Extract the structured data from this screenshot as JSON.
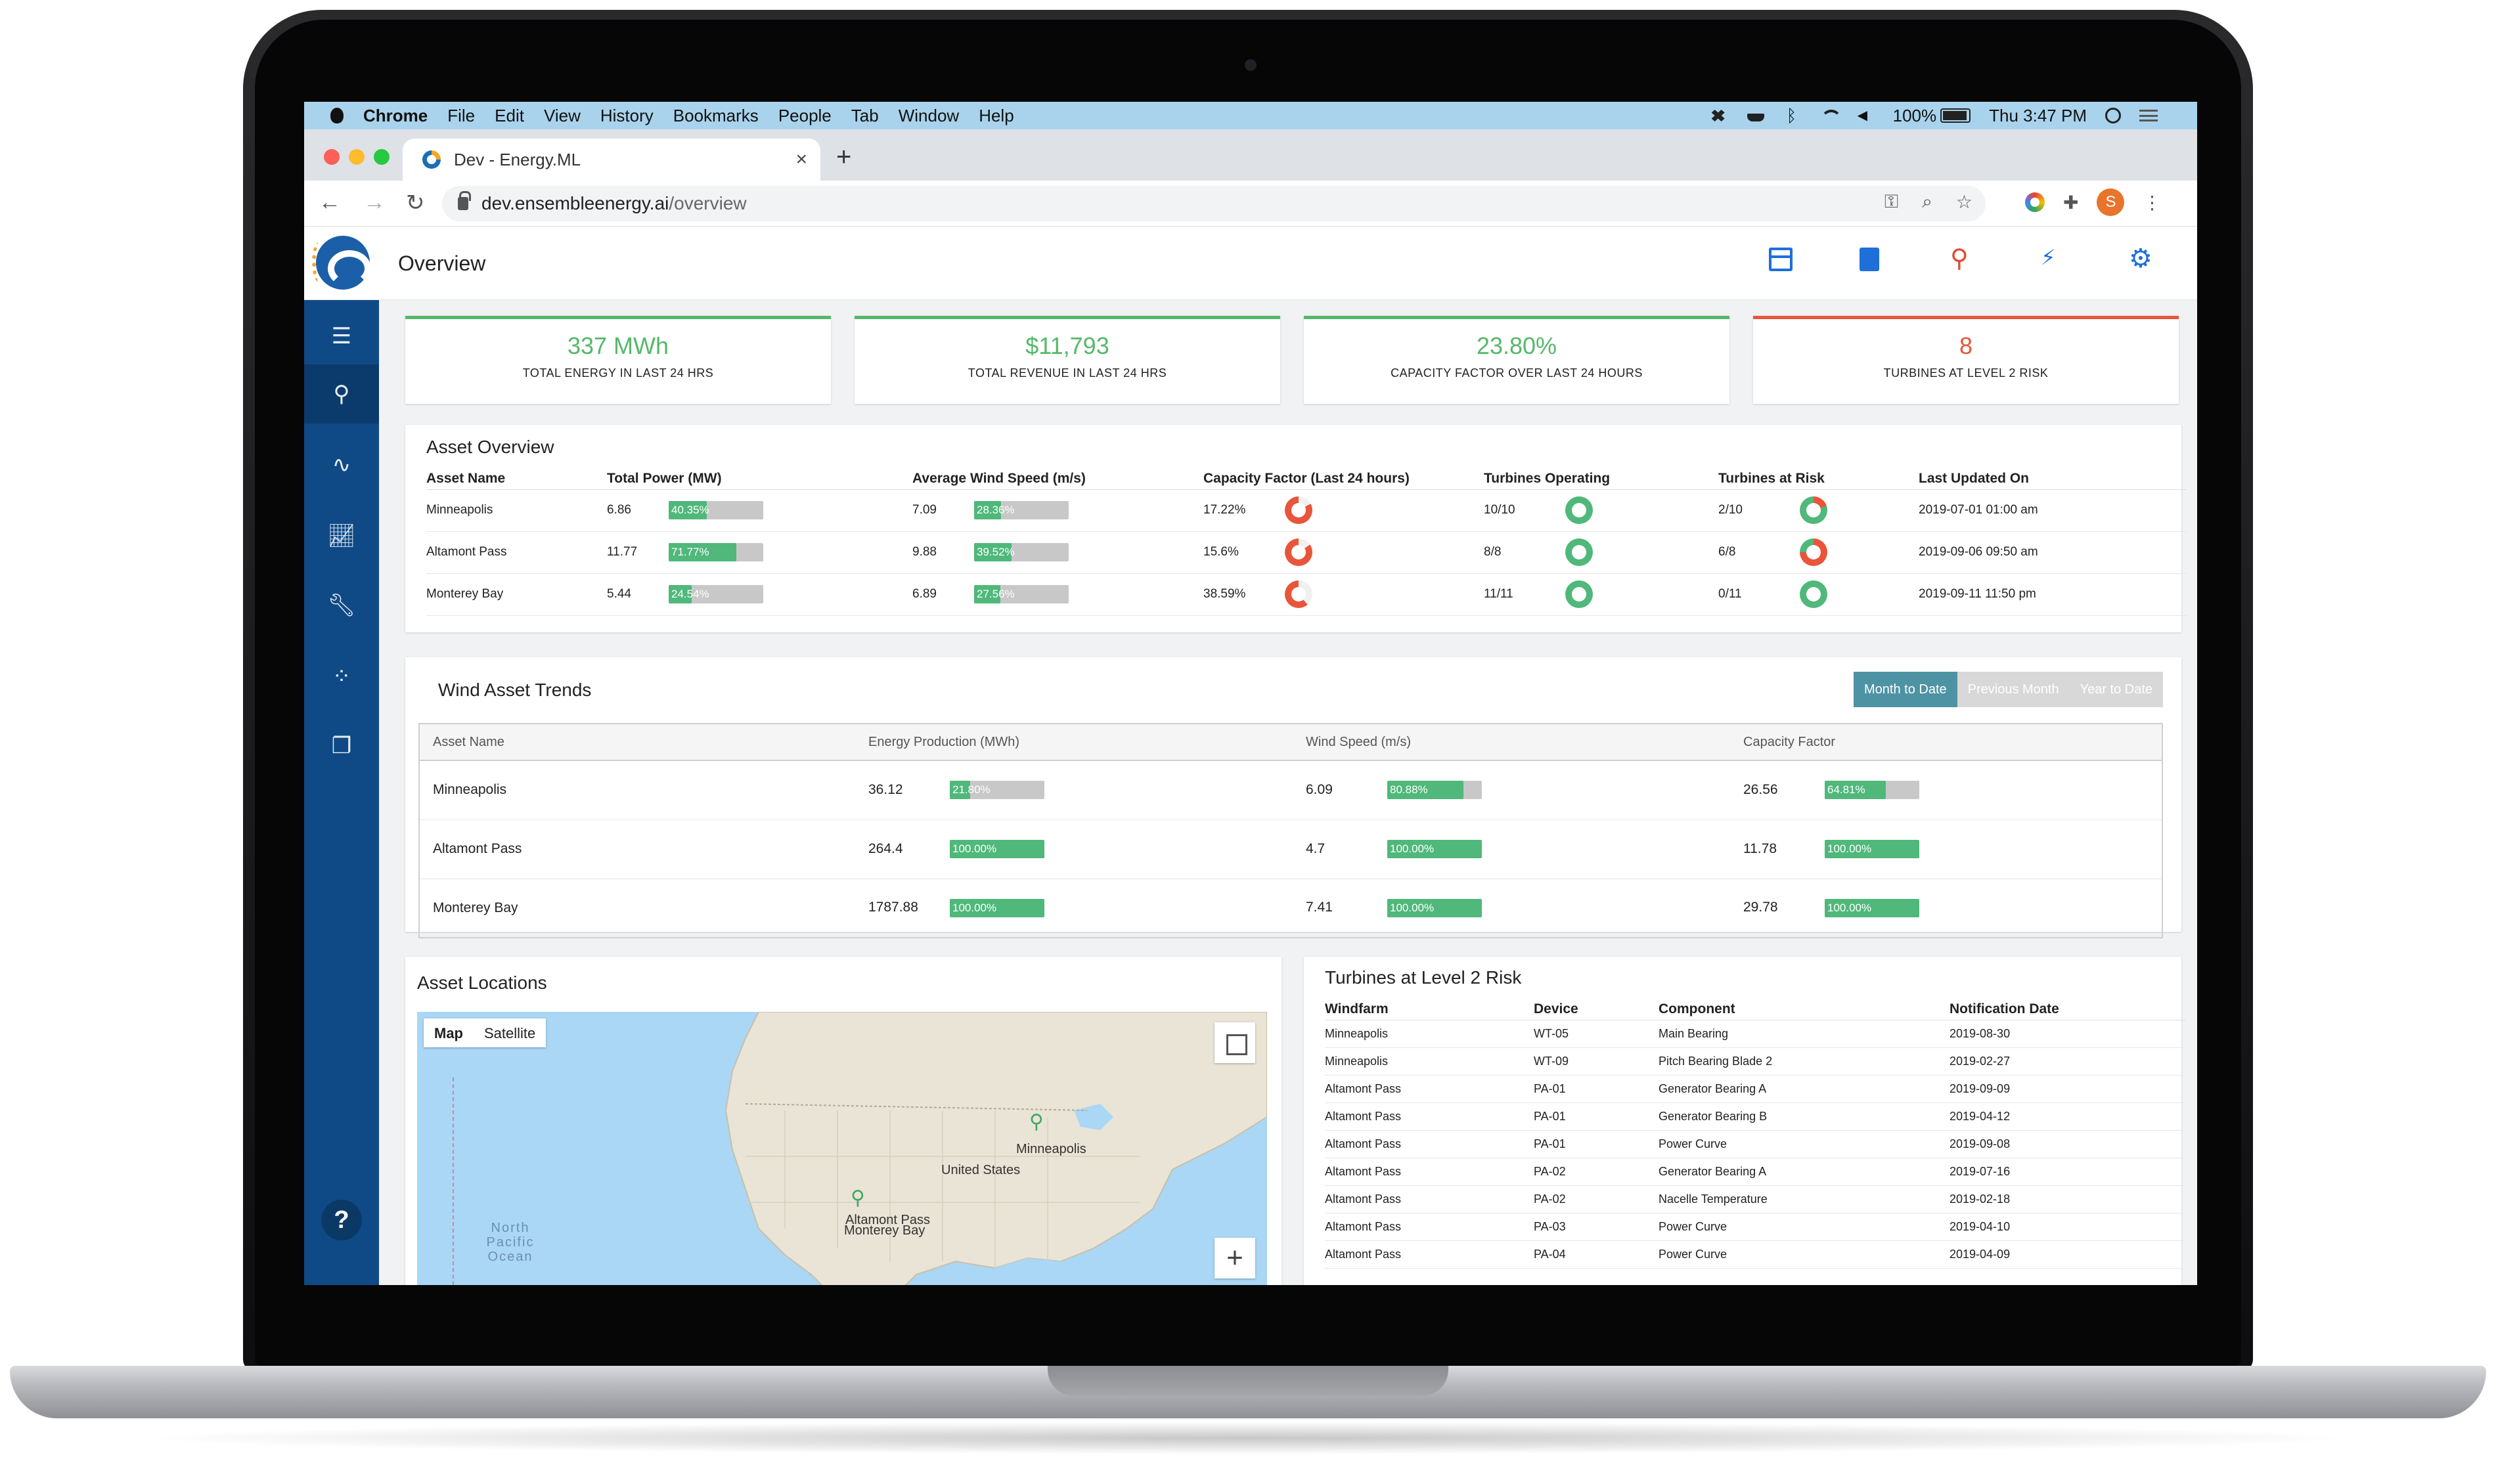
{
  "menubar": {
    "items": [
      "Chrome",
      "File",
      "Edit",
      "View",
      "History",
      "Bookmarks",
      "People",
      "Tab",
      "Window",
      "Help"
    ],
    "battery": "100%",
    "clock": "Thu 3:47 PM"
  },
  "browser": {
    "tab_title": "Dev - Energy.ML",
    "url_host": "dev.ensembleenergy.ai",
    "url_path": "/overview",
    "profile_initial": "S"
  },
  "app": {
    "page_title": "Overview",
    "header_icons": [
      "table-edit-icon",
      "book-icon",
      "turbine-icon",
      "power-icon",
      "gear-icon",
      "user-icon"
    ],
    "sidebar_icons": [
      "menu-icon",
      "turbine-icon",
      "pulse-icon",
      "chart-icon",
      "wrench-icon",
      "bubbles-icon",
      "library-icon"
    ],
    "help_label": "?"
  },
  "kpis": [
    {
      "value": "337 MWh",
      "label": "TOTAL ENERGY IN LAST 24 HRS",
      "accent": "#55b86a"
    },
    {
      "value": "$11,793",
      "label": "TOTAL REVENUE IN LAST 24 HRS",
      "accent": "#55b86a"
    },
    {
      "value": "23.80%",
      "label": "CAPACITY FACTOR OVER LAST 24 HOURS",
      "accent": "#55b86a"
    },
    {
      "value": "8",
      "label": "TURBINES AT LEVEL 2 RISK",
      "accent": "#e8553a"
    }
  ],
  "asset_overview": {
    "title": "Asset Overview",
    "columns": [
      "Asset Name",
      "Total Power (MW)",
      "Average Wind Speed (m/s)",
      "Capacity Factor (Last 24 hours)",
      "Turbines Operating",
      "Turbines at Risk",
      "Last Updated On"
    ],
    "rows": [
      {
        "name": "Minneapolis",
        "power": "6.86",
        "power_pct": "40.35%",
        "power_frac": 0.4035,
        "wind": "7.09",
        "wind_pct": "28.36%",
        "wind_frac": 0.2836,
        "cf": "17.22%",
        "cf_frac": 0.1722,
        "operating": "10/10",
        "operating_frac": 1.0,
        "risk": "2/10",
        "risk_frac": 0.2,
        "updated": "2019-07-01 01:00 am"
      },
      {
        "name": "Altamont Pass",
        "power": "11.77",
        "power_pct": "71.77%",
        "power_frac": 0.7177,
        "wind": "9.88",
        "wind_pct": "39.52%",
        "wind_frac": 0.3952,
        "cf": "15.6%",
        "cf_frac": 0.156,
        "operating": "8/8",
        "operating_frac": 1.0,
        "risk": "6/8",
        "risk_frac": 0.75,
        "updated": "2019-09-06 09:50 am"
      },
      {
        "name": "Monterey Bay",
        "power": "5.44",
        "power_pct": "24.54%",
        "power_frac": 0.2454,
        "wind": "6.89",
        "wind_pct": "27.56%",
        "wind_frac": 0.2756,
        "cf": "38.59%",
        "cf_frac": 0.3859,
        "operating": "11/11",
        "operating_frac": 1.0,
        "risk": "0/11",
        "risk_frac": 0.0,
        "updated": "2019-09-11 11:50 pm"
      }
    ]
  },
  "wind_trends": {
    "title": "Wind Asset Trends",
    "periods": [
      "Month to Date",
      "Previous Month",
      "Year to Date"
    ],
    "active_period": "Month to Date",
    "columns": [
      "Asset Name",
      "Energy Production (MWh)",
      "Wind Speed (m/s)",
      "Capacity Factor"
    ],
    "rows": [
      {
        "name": "Minneapolis",
        "energy": "36.12",
        "energy_pct": "21.80%",
        "energy_frac": 0.218,
        "wind": "6.09",
        "wind_pct": "80.88%",
        "wind_frac": 0.8088,
        "cf": "26.56",
        "cf_pct": "64.81%",
        "cf_frac": 0.6481
      },
      {
        "name": "Altamont Pass",
        "energy": "264.4",
        "energy_pct": "100.00%",
        "energy_frac": 1.0,
        "wind": "4.7",
        "wind_pct": "100.00%",
        "wind_frac": 1.0,
        "cf": "11.78",
        "cf_pct": "100.00%",
        "cf_frac": 1.0
      },
      {
        "name": "Monterey Bay",
        "energy": "1787.88",
        "energy_pct": "100.00%",
        "energy_frac": 1.0,
        "wind": "7.41",
        "wind_pct": "100.00%",
        "wind_frac": 1.0,
        "cf": "29.78",
        "cf_pct": "100.00%",
        "cf_frac": 1.0
      }
    ]
  },
  "asset_locations": {
    "title": "Asset Locations",
    "map_types": [
      "Map",
      "Satellite"
    ],
    "active_map_type": "Map",
    "labels": [
      "Minneapolis",
      "United States",
      "Altamont Pass",
      "Monterey Bay",
      "North Pacific Ocean"
    ],
    "zoom_label": "+"
  },
  "risk_turbines": {
    "title": "Turbines at Level 2 Risk",
    "columns": [
      "Windfarm",
      "Device",
      "Component",
      "Notification Date"
    ],
    "rows": [
      [
        "Minneapolis",
        "WT-05",
        "Main Bearing",
        "2019-08-30"
      ],
      [
        "Minneapolis",
        "WT-09",
        "Pitch Bearing Blade 2",
        "2019-02-27"
      ],
      [
        "Altamont Pass",
        "PA-01",
        "Generator Bearing A",
        "2019-09-09"
      ],
      [
        "Altamont Pass",
        "PA-01",
        "Generator Bearing B",
        "2019-04-12"
      ],
      [
        "Altamont Pass",
        "PA-01",
        "Power Curve",
        "2019-09-08"
      ],
      [
        "Altamont Pass",
        "PA-02",
        "Generator Bearing A",
        "2019-07-16"
      ],
      [
        "Altamont Pass",
        "PA-02",
        "Nacelle Temperature",
        "2019-02-18"
      ],
      [
        "Altamont Pass",
        "PA-03",
        "Power Curve",
        "2019-04-10"
      ],
      [
        "Altamont Pass",
        "PA-04",
        "Power Curve",
        "2019-04-09"
      ]
    ]
  }
}
